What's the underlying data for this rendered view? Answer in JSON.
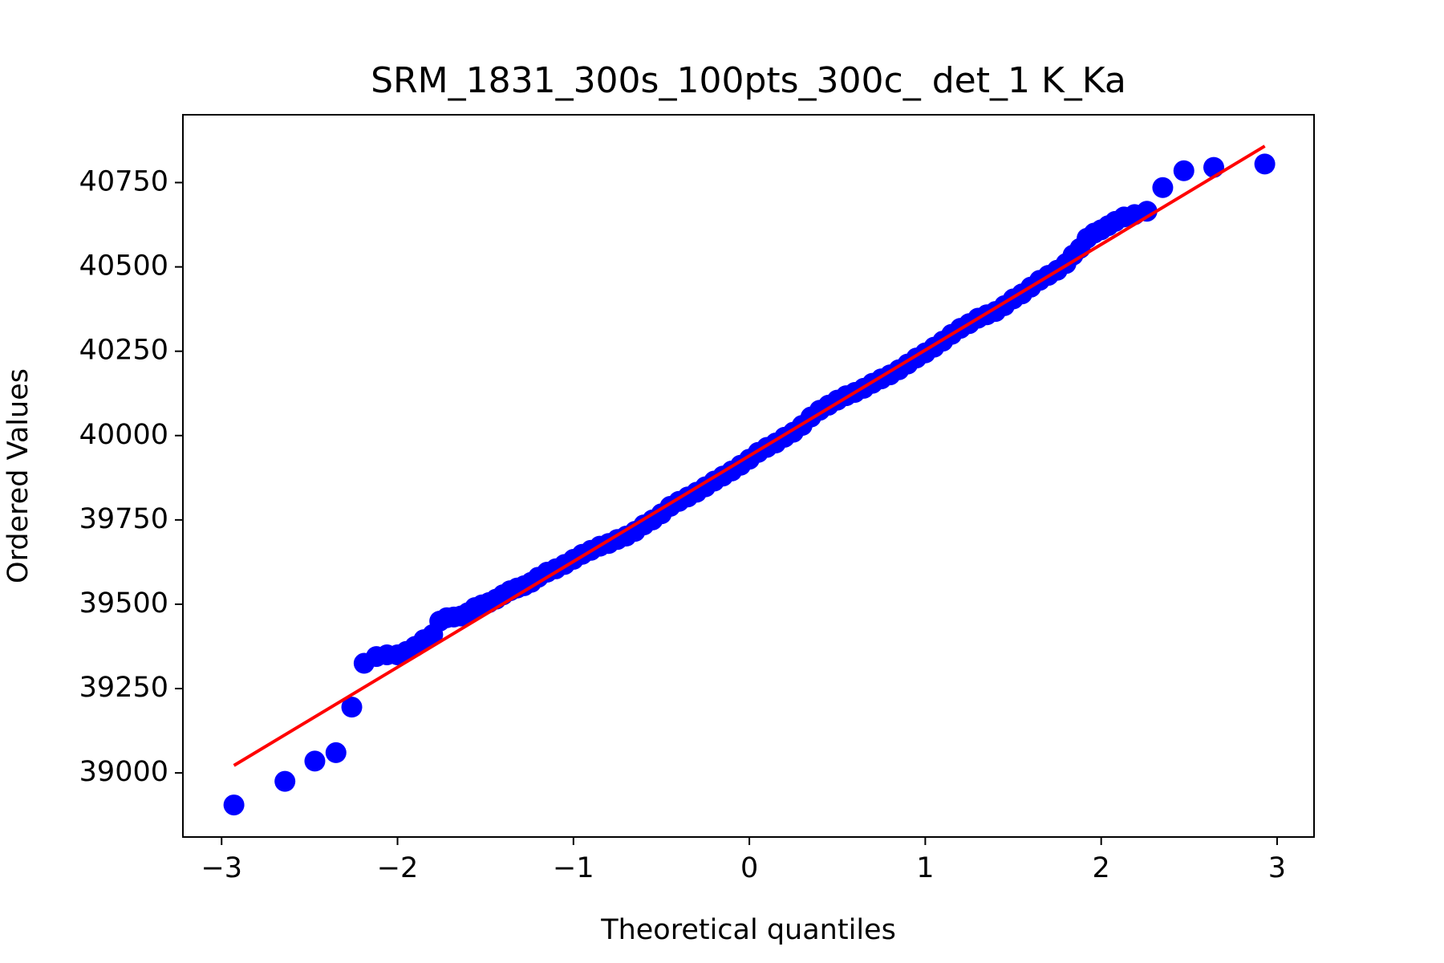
{
  "chart_data": {
    "type": "scatter",
    "title": "SRM_1831_300s_100pts_300c_ det_1 K_Ka",
    "x_label": "Theoretical quantiles",
    "y_label": "Ordered Values",
    "x": [
      -2.93,
      -2.64,
      -2.47,
      -2.35,
      -2.26,
      -2.19,
      -2.12,
      -2.06,
      -2.0,
      -1.95,
      -1.9,
      -1.85,
      -1.8,
      -1.76,
      -1.72,
      -1.68,
      -1.64,
      -1.6,
      -1.56,
      -1.52,
      -1.48,
      -1.44,
      -1.4,
      -1.36,
      -1.32,
      -1.28,
      -1.24,
      -1.2,
      -1.15,
      -1.1,
      -1.05,
      -1.0,
      -0.95,
      -0.9,
      -0.85,
      -0.8,
      -0.75,
      -0.7,
      -0.65,
      -0.6,
      -0.55,
      -0.5,
      -0.45,
      -0.4,
      -0.35,
      -0.3,
      -0.25,
      -0.2,
      -0.15,
      -0.1,
      -0.05,
      0,
      0.05,
      0.1,
      0.15,
      0.2,
      0.25,
      0.3,
      0.35,
      0.4,
      0.45,
      0.5,
      0.55,
      0.6,
      0.65,
      0.7,
      0.75,
      0.8,
      0.85,
      0.9,
      0.95,
      1.0,
      1.05,
      1.1,
      1.15,
      1.2,
      1.25,
      1.3,
      1.35,
      1.4,
      1.45,
      1.5,
      1.55,
      1.6,
      1.65,
      1.7,
      1.75,
      1.8,
      1.84,
      1.88,
      1.92,
      1.96,
      2.0,
      2.04,
      2.08,
      2.13,
      2.19,
      2.26,
      2.35,
      2.47,
      2.64,
      2.93
    ],
    "series": [
      {
        "color": "#0000ff",
        "values": [
          38905,
          38975,
          39035,
          39060,
          39195,
          39325,
          39345,
          39350,
          39350,
          39360,
          39375,
          39395,
          39410,
          39450,
          39460,
          39462,
          39465,
          39475,
          39490,
          39498,
          39505,
          39515,
          39528,
          39540,
          39548,
          39555,
          39565,
          39580,
          39595,
          39605,
          39618,
          39633,
          39648,
          39660,
          39672,
          39680,
          39692,
          39702,
          39716,
          39735,
          39750,
          39768,
          39790,
          39805,
          39818,
          39832,
          39848,
          39865,
          39880,
          39895,
          39912,
          39930,
          39950,
          39965,
          39978,
          39995,
          40010,
          40030,
          40055,
          40075,
          40090,
          40105,
          40118,
          40128,
          40140,
          40155,
          40168,
          40180,
          40195,
          40212,
          40230,
          40245,
          40262,
          40280,
          40300,
          40318,
          40332,
          40348,
          40358,
          40368,
          40385,
          40405,
          40420,
          40440,
          40460,
          40475,
          40490,
          40510,
          40535,
          40555,
          40585,
          40600,
          40610,
          40622,
          40635,
          40648,
          40655,
          40665,
          40735,
          40785,
          40795,
          40805
        ]
      }
    ],
    "fit": {
      "color": "#ff0000",
      "x": [
        -2.93,
        2.93
      ],
      "values": [
        39022,
        40858
      ]
    },
    "xlim": [
      -3.22,
      3.21
    ],
    "ylim": [
      38810,
      40951
    ],
    "xticks": [
      {
        "value": -3,
        "label": "−3"
      },
      {
        "value": -2,
        "label": "−2"
      },
      {
        "value": -1,
        "label": "−1"
      },
      0,
      1,
      2,
      3
    ],
    "yticks": [
      39000,
      39250,
      39500,
      39750,
      40000,
      40250,
      40500,
      40750
    ]
  }
}
